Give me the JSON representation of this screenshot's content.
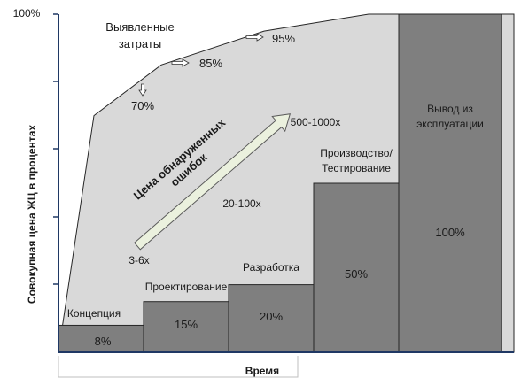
{
  "chart_data": {
    "type": "bar",
    "ylabel": "Совокупная цена ЖЦ в процентах",
    "xlabel": "Время",
    "y_top_label": "100%",
    "ylim": [
      0,
      100
    ],
    "phases": [
      {
        "name": "Концепция",
        "value": 8,
        "value_label": "8%"
      },
      {
        "name": "Проектирование",
        "value": 15,
        "value_label": "15%"
      },
      {
        "name": "Разработка",
        "value": 20,
        "value_label": "20%"
      },
      {
        "name": "Производство/\nТестирование",
        "value": 50,
        "value_label": "50%"
      },
      {
        "name": "Вывод из\nэксплуатации",
        "value": 100,
        "value_label": "100%"
      }
    ],
    "committed_costs": {
      "label": "Выявленные\nзатраты",
      "values": [
        0,
        70,
        85,
        95,
        100,
        100
      ],
      "annotations": [
        "70%",
        "85%",
        "95%"
      ]
    },
    "error_cost": {
      "label": "Цена обнаруженных\nошибок",
      "multipliers": [
        "3-6x",
        "20-100x",
        "500-1000x"
      ]
    }
  },
  "colors": {
    "bar": "#7f7f7f",
    "area": "#d9d9d9",
    "axis": "#1f3864",
    "arrow_fill": "#ebf1de"
  }
}
